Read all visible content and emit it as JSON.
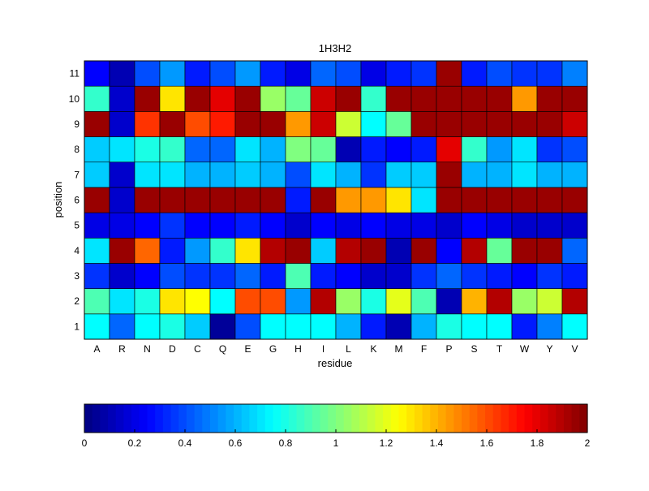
{
  "chart_data": {
    "type": "heatmap",
    "title": "1H3H2",
    "xlabel": "residue",
    "ylabel": "position",
    "x_categories": [
      "A",
      "R",
      "N",
      "D",
      "C",
      "Q",
      "E",
      "G",
      "H",
      "I",
      "L",
      "K",
      "M",
      "F",
      "P",
      "S",
      "T",
      "W",
      "Y",
      "V"
    ],
    "y_categories": [
      "1",
      "2",
      "3",
      "4",
      "5",
      "6",
      "7",
      "8",
      "9",
      "10",
      "11"
    ],
    "colormap": "jet",
    "clim": [
      0,
      2
    ],
    "colorbar": {
      "orientation": "horizontal",
      "placement": "bottom",
      "ticks": [
        "0",
        "0.2",
        "0.4",
        "0.6",
        "0.8",
        "1",
        "1.2",
        "1.4",
        "1.6",
        "1.8",
        "2"
      ]
    },
    "values": [
      [
        0.75,
        0.45,
        0.75,
        0.8,
        0.65,
        0.05,
        0.4,
        0.75,
        0.75,
        0.75,
        0.6,
        0.3,
        0.1,
        0.6,
        0.8,
        0.75,
        0.75,
        0.3,
        0.5,
        0.75
      ],
      [
        0.9,
        0.7,
        0.8,
        1.3,
        1.25,
        0.75,
        1.6,
        1.6,
        0.55,
        1.9,
        1.05,
        0.8,
        1.2,
        0.9,
        0.1,
        1.4,
        1.9,
        1.05,
        1.15,
        1.9
      ],
      [
        0.35,
        0.15,
        0.25,
        0.4,
        0.35,
        0.35,
        0.45,
        0.3,
        0.9,
        0.3,
        0.25,
        0.15,
        0.15,
        0.35,
        0.45,
        0.35,
        0.3,
        0.25,
        0.35,
        0.3
      ],
      [
        0.7,
        1.95,
        1.55,
        0.3,
        0.55,
        0.85,
        1.3,
        1.9,
        1.95,
        0.65,
        1.9,
        1.95,
        0.1,
        1.95,
        0.25,
        1.9,
        0.95,
        1.95,
        1.95,
        0.45
      ],
      [
        0.2,
        0.2,
        0.25,
        0.35,
        0.25,
        0.25,
        0.3,
        0.25,
        0.15,
        0.25,
        0.2,
        0.25,
        0.2,
        0.2,
        0.15,
        0.25,
        0.2,
        0.15,
        0.15,
        0.15
      ],
      [
        1.95,
        0.15,
        1.95,
        1.95,
        1.95,
        1.95,
        1.95,
        1.95,
        0.3,
        1.95,
        1.45,
        1.45,
        1.3,
        0.7,
        1.95,
        1.95,
        1.95,
        1.95,
        1.95,
        1.95
      ],
      [
        0.65,
        0.15,
        0.7,
        0.7,
        0.6,
        0.6,
        0.65,
        0.6,
        0.4,
        0.7,
        0.6,
        0.35,
        0.65,
        0.65,
        1.95,
        0.6,
        0.6,
        0.7,
        0.6,
        0.6
      ],
      [
        0.65,
        0.7,
        0.8,
        0.85,
        0.45,
        0.45,
        0.7,
        0.6,
        1.0,
        0.95,
        0.1,
        0.3,
        0.25,
        0.3,
        1.8,
        0.85,
        0.55,
        0.7,
        0.35,
        0.4
      ],
      [
        1.95,
        0.15,
        1.65,
        1.95,
        1.6,
        1.7,
        1.95,
        1.95,
        1.45,
        1.85,
        1.15,
        0.75,
        0.95,
        1.95,
        1.95,
        1.95,
        1.95,
        1.95,
        1.95,
        1.85
      ],
      [
        0.85,
        0.15,
        1.95,
        1.3,
        1.95,
        1.8,
        1.95,
        1.05,
        0.95,
        1.85,
        1.95,
        0.85,
        1.95,
        1.95,
        1.95,
        1.95,
        1.95,
        1.45,
        1.95,
        1.95
      ],
      [
        0.25,
        0.1,
        0.4,
        0.55,
        0.3,
        0.4,
        0.55,
        0.3,
        0.2,
        0.45,
        0.4,
        0.2,
        0.3,
        0.35,
        1.95,
        0.3,
        0.4,
        0.35,
        0.35,
        0.5
      ]
    ]
  }
}
